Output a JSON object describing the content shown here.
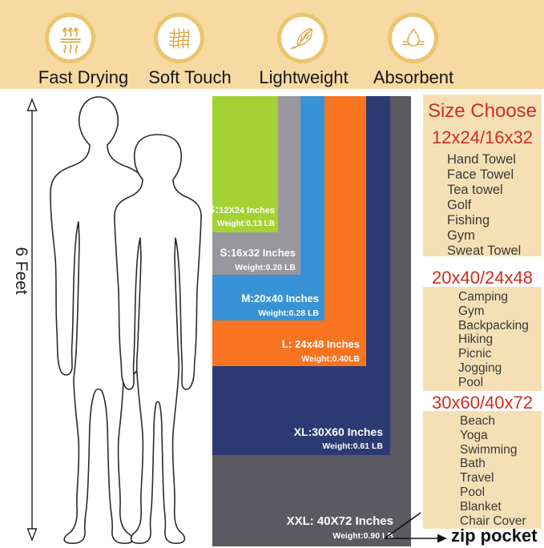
{
  "features": [
    {
      "label": "Fast Drying",
      "icon": "fast-drying-icon"
    },
    {
      "label": "Soft Touch",
      "icon": "soft-touch-icon"
    },
    {
      "label": "Lightweight",
      "icon": "lightweight-icon"
    },
    {
      "label": "Absorbent",
      "icon": "absorbent-icon"
    }
  ],
  "measure": {
    "label": "6 Feet"
  },
  "towels": [
    {
      "size_label": "XS:",
      "dimensions": "12X24 Inches",
      "weight": "Weight:0.13 LB",
      "color": "#a4d235"
    },
    {
      "size_label": "S:",
      "dimensions": "16x32 Inches",
      "weight": "Weight:0.20 LB",
      "color": "#98979e"
    },
    {
      "size_label": "M:",
      "dimensions": "20x40 Inches",
      "weight": "Weight:0.28 LB",
      "color": "#3793d6"
    },
    {
      "size_label": "L:",
      "dimensions": " 24x48 Inches",
      "weight": "Weight:0.40LB",
      "color": "#f97420"
    },
    {
      "size_label": "XL:",
      "dimensions": "30X60 Inches",
      "weight": "Weight:0.61 LB",
      "color": "#2b3a72"
    },
    {
      "size_label": "XXL:",
      "dimensions": " 40X72 Inches",
      "weight": "Weight:0.90 LB",
      "color": "#5c5a61"
    }
  ],
  "size_guide": {
    "title": "Size Choose",
    "groups": [
      {
        "header": "12x24/16x32",
        "items": [
          "Hand Towel",
          "Face Towel",
          "Tea towel",
          "Golf",
          "Fishing",
          "Gym",
          "Sweat Towel"
        ]
      },
      {
        "header": "20x40/24x48",
        "items": [
          "Camping",
          "Gym",
          "Backpacking",
          "Hiking",
          "Picnic",
          "Jogging",
          "Pool"
        ]
      },
      {
        "header": "30x60/40x72",
        "items": [
          "Beach",
          "Yoga",
          "Swimming",
          "Bath",
          "Travel",
          "Pool",
          "Blanket",
          "Chair Cover"
        ]
      }
    ]
  },
  "zip_pocket_label": "zip pocket",
  "colors": {
    "band": "#f7d9a2",
    "icon_ring": "#ecc46d",
    "icon_gold": "#d8a844",
    "panel": "#f5e0b6",
    "heading_red": "#cf2e21",
    "list_text": "#3a3836"
  }
}
